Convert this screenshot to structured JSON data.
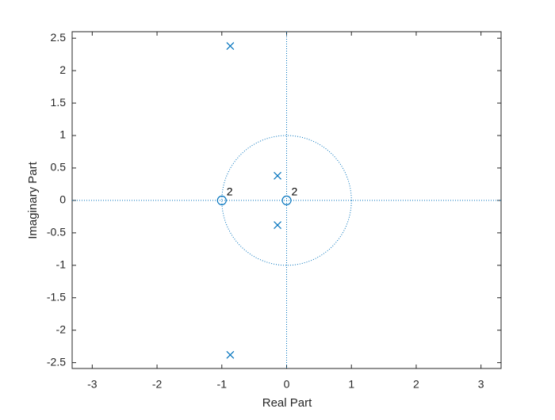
{
  "chart_data": {
    "type": "pole-zero",
    "xlabel": "Real Part",
    "ylabel": "Imaginary Part",
    "xlim": [
      -3.31,
      3.31
    ],
    "ylim": [
      -2.59,
      2.6
    ],
    "xticks": [
      -3,
      -2,
      -1,
      0,
      1,
      2,
      3
    ],
    "yticks": [
      -2.5,
      -2,
      -1.5,
      -1,
      -0.5,
      0,
      0.5,
      1,
      1.5,
      2,
      2.5
    ],
    "color": "#0072bd",
    "series": [
      {
        "marker": "o",
        "x": [
          -1,
          0
        ],
        "values": [
          0,
          0
        ],
        "multiplicity": [
          2,
          2
        ]
      },
      {
        "marker": "x",
        "x": [
          -0.87,
          -0.87,
          -0.14,
          -0.14
        ],
        "values": [
          2.38,
          -2.38,
          0.38,
          -0.38
        ]
      }
    ]
  }
}
